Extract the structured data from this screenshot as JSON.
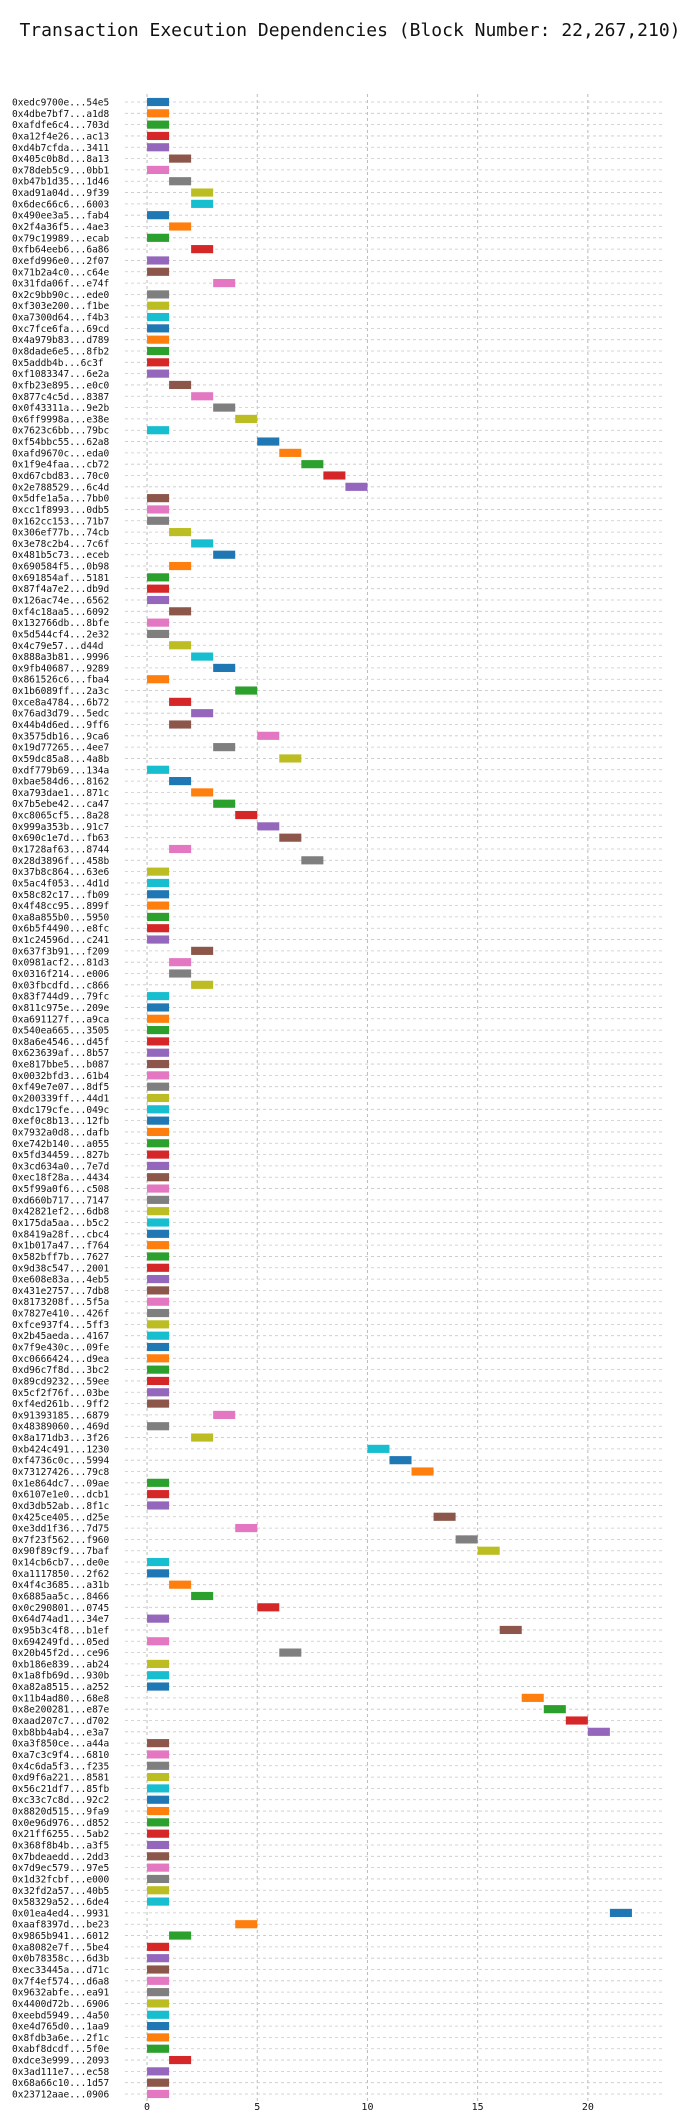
{
  "chart_data": {
    "type": "bar",
    "orientation": "horizontal",
    "title": "Transaction Execution Dependencies (Block Number: 22,267,210)",
    "xlabel": "",
    "ylabel": "",
    "xlim": [
      -1,
      23.5
    ],
    "xticks": [
      0,
      5,
      10,
      15,
      20
    ],
    "grid": true,
    "palette": {
      "blue": "#1f77b4",
      "orange": "#ff7f0e",
      "green": "#2ca02c",
      "red": "#d62728",
      "purple": "#9467bd",
      "brown": "#8c564b",
      "pink": "#e377c2",
      "gray": "#7f7f7f",
      "olive": "#bcbd22",
      "cyan": "#17becf"
    },
    "rows": [
      [
        "0xedc9700e...54e5",
        0,
        "blue"
      ],
      [
        "0x4dbe7bf7...a1d8",
        0,
        "orange"
      ],
      [
        "0xafdfe6c4...703d",
        0,
        "green"
      ],
      [
        "0xa12f4e26...ac13",
        0,
        "red"
      ],
      [
        "0xd4b7cfda...3411",
        0,
        "purple"
      ],
      [
        "0x405c0b8d...8a13",
        1,
        "brown"
      ],
      [
        "0x78deb5c9...0bb1",
        0,
        "pink"
      ],
      [
        "0xb47b1d35...1d46",
        1,
        "gray"
      ],
      [
        "0xad91a04d...9f39",
        2,
        "olive"
      ],
      [
        "0x6dec66c6...6003",
        2,
        "cyan"
      ],
      [
        "0x490ee3a5...fab4",
        0,
        "blue"
      ],
      [
        "0x2f4a36f5...4ae3",
        1,
        "orange"
      ],
      [
        "0x79c19989...ecab",
        0,
        "green"
      ],
      [
        "0xfb64eeb6...6a86",
        2,
        "red"
      ],
      [
        "0xefd996e0...2f07",
        0,
        "purple"
      ],
      [
        "0x71b2a4c0...c64e",
        0,
        "brown"
      ],
      [
        "0x31fda06f...e74f",
        3,
        "pink"
      ],
      [
        "0x2c9bb90c...ede0",
        0,
        "gray"
      ],
      [
        "0xf303e200...f1be",
        0,
        "olive"
      ],
      [
        "0xa7300d64...f4b3",
        0,
        "cyan"
      ],
      [
        "0xc7fce6fa...69cd",
        0,
        "blue"
      ],
      [
        "0x4a979b83...d789",
        0,
        "orange"
      ],
      [
        "0x8dade6e5...8fb2",
        0,
        "green"
      ],
      [
        "0x5addb4b...6c3f",
        0,
        "red"
      ],
      [
        "0xf1083347...6e2a",
        0,
        "purple"
      ],
      [
        "0xfb23e895...e0c0",
        1,
        "brown"
      ],
      [
        "0x877c4c5d...8387",
        2,
        "pink"
      ],
      [
        "0x0f43311a...9e2b",
        3,
        "gray"
      ],
      [
        "0x6ff9998a...e38e",
        4,
        "olive"
      ],
      [
        "0x7623c6bb...79bc",
        0,
        "cyan"
      ],
      [
        "0xf54bbc55...62a8",
        5,
        "blue"
      ],
      [
        "0xafd9670c...eda0",
        6,
        "orange"
      ],
      [
        "0x1f9e4faa...cb72",
        7,
        "green"
      ],
      [
        "0xd67cbd83...70c0",
        8,
        "red"
      ],
      [
        "0x2e788529...6c4d",
        9,
        "purple"
      ],
      [
        "0x5dfe1a5a...7bb0",
        0,
        "brown"
      ],
      [
        "0xcc1f8993...0db5",
        0,
        "pink"
      ],
      [
        "0x162cc153...71b7",
        0,
        "gray"
      ],
      [
        "0x306ef77b...74cb",
        1,
        "olive"
      ],
      [
        "0x3e78c2b4...7c6f",
        2,
        "cyan"
      ],
      [
        "0x481b5c73...eceb",
        3,
        "blue"
      ],
      [
        "0x690584f5...0b98",
        1,
        "orange"
      ],
      [
        "0x691854af...5181",
        0,
        "green"
      ],
      [
        "0x87f4a7e2...db9d",
        0,
        "red"
      ],
      [
        "0x126ac74e...6562",
        0,
        "purple"
      ],
      [
        "0xf4c18aa5...6092",
        1,
        "brown"
      ],
      [
        "0x132766db...8bfe",
        0,
        "pink"
      ],
      [
        "0x5d544cf4...2e32",
        0,
        "gray"
      ],
      [
        "0x4c79e57...d44d",
        1,
        "olive"
      ],
      [
        "0x888a3b81...9996",
        2,
        "cyan"
      ],
      [
        "0x9fb40687...9289",
        3,
        "blue"
      ],
      [
        "0x861526c6...fba4",
        0,
        "orange"
      ],
      [
        "0x1b6089ff...2a3c",
        4,
        "green"
      ],
      [
        "0xce8a4784...6b72",
        1,
        "red"
      ],
      [
        "0x76ad3d79...5edc",
        2,
        "purple"
      ],
      [
        "0x44b4d6ed...9ff6",
        1,
        "brown"
      ],
      [
        "0x3575db16...9ca6",
        5,
        "pink"
      ],
      [
        "0x19d77265...4ee7",
        3,
        "gray"
      ],
      [
        "0x59dc85a8...4a8b",
        6,
        "olive"
      ],
      [
        "0xdf779b69...134a",
        0,
        "cyan"
      ],
      [
        "0xbae584d6...8162",
        1,
        "blue"
      ],
      [
        "0xa793dae1...871c",
        2,
        "orange"
      ],
      [
        "0x7b5ebe42...ca47",
        3,
        "green"
      ],
      [
        "0xc8065cf5...8a28",
        4,
        "red"
      ],
      [
        "0x999a353b...91c7",
        5,
        "purple"
      ],
      [
        "0x690c1e7d...fb63",
        6,
        "brown"
      ],
      [
        "0x1728af63...8744",
        1,
        "pink"
      ],
      [
        "0x28d3896f...458b",
        7,
        "gray"
      ],
      [
        "0x37b8c864...63e6",
        0,
        "olive"
      ],
      [
        "0x5ac4f053...4d1d",
        0,
        "cyan"
      ],
      [
        "0x58c82c17...fb09",
        0,
        "blue"
      ],
      [
        "0x4f48cc95...899f",
        0,
        "orange"
      ],
      [
        "0xa8a855b0...5950",
        0,
        "green"
      ],
      [
        "0x6b5f4490...e8fc",
        0,
        "red"
      ],
      [
        "0x1c24596d...c241",
        0,
        "purple"
      ],
      [
        "0x637f3b91...f209",
        2,
        "brown"
      ],
      [
        "0x0981acf2...81d3",
        1,
        "pink"
      ],
      [
        "0x0316f214...e006",
        1,
        "gray"
      ],
      [
        "0x03fbcdfd...c866",
        2,
        "olive"
      ],
      [
        "0x83f744d9...79fc",
        0,
        "cyan"
      ],
      [
        "0x811c975e...209e",
        0,
        "blue"
      ],
      [
        "0xa691127f...a9ca",
        0,
        "orange"
      ],
      [
        "0x540ea665...3505",
        0,
        "green"
      ],
      [
        "0x8a6e4546...d45f",
        0,
        "red"
      ],
      [
        "0x623639af...8b57",
        0,
        "purple"
      ],
      [
        "0xe817bbe5...b087",
        0,
        "brown"
      ],
      [
        "0x0032bfd3...61b4",
        0,
        "pink"
      ],
      [
        "0xf49e7e07...8df5",
        0,
        "gray"
      ],
      [
        "0x200339ff...44d1",
        0,
        "olive"
      ],
      [
        "0xdc179cfe...049c",
        0,
        "cyan"
      ],
      [
        "0xef0c8b13...12fb",
        0,
        "blue"
      ],
      [
        "0x7932a0d8...dafb",
        0,
        "orange"
      ],
      [
        "0xe742b140...a055",
        0,
        "green"
      ],
      [
        "0x5fd34459...827b",
        0,
        "red"
      ],
      [
        "0x3cd634a0...7e7d",
        0,
        "purple"
      ],
      [
        "0xec18f28a...4434",
        0,
        "brown"
      ],
      [
        "0x5f99a0f6...c508",
        0,
        "pink"
      ],
      [
        "0xd660b717...7147",
        0,
        "gray"
      ],
      [
        "0x42821ef2...6db8",
        0,
        "olive"
      ],
      [
        "0x175da5aa...b5c2",
        0,
        "cyan"
      ],
      [
        "0x8419a28f...cbc4",
        0,
        "blue"
      ],
      [
        "0x1b017a47...f764",
        0,
        "orange"
      ],
      [
        "0x582bff7b...7627",
        0,
        "green"
      ],
      [
        "0x9d38c547...2001",
        0,
        "red"
      ],
      [
        "0xe608e83a...4eb5",
        0,
        "purple"
      ],
      [
        "0x431e2757...7db8",
        0,
        "brown"
      ],
      [
        "0x8173208f...5f5a",
        0,
        "pink"
      ],
      [
        "0x7827e410...426f",
        0,
        "gray"
      ],
      [
        "0xfce937f4...5ff3",
        0,
        "olive"
      ],
      [
        "0x2b45aeda...4167",
        0,
        "cyan"
      ],
      [
        "0x7f9e430c...09fe",
        0,
        "blue"
      ],
      [
        "0xc0666424...d9ea",
        0,
        "orange"
      ],
      [
        "0xd96c7f8d...3bc2",
        0,
        "green"
      ],
      [
        "0x89cd9232...59ee",
        0,
        "red"
      ],
      [
        "0x5cf2f76f...03be",
        0,
        "purple"
      ],
      [
        "0xf4ed261b...9ff2",
        0,
        "brown"
      ],
      [
        "0x91393185...6879",
        3,
        "pink"
      ],
      [
        "0x48389060...469d",
        0,
        "gray"
      ],
      [
        "0x8a171db3...3f26",
        2,
        "olive"
      ],
      [
        "0xb424c491...1230",
        10,
        "cyan"
      ],
      [
        "0xf4736c0c...5994",
        11,
        "blue"
      ],
      [
        "0x73127426...79c8",
        12,
        "orange"
      ],
      [
        "0x1e864dc7...09ae",
        0,
        "green"
      ],
      [
        "0x6107e1e0...dcb1",
        0,
        "red"
      ],
      [
        "0xd3db52ab...8f1c",
        0,
        "purple"
      ],
      [
        "0x425ce405...d25e",
        13,
        "brown"
      ],
      [
        "0xe3dd1f36...7d75",
        4,
        "pink"
      ],
      [
        "0x7f23f562...f960",
        14,
        "gray"
      ],
      [
        "0x90f89cf9...7baf",
        15,
        "olive"
      ],
      [
        "0x14cb6cb7...de0e",
        0,
        "cyan"
      ],
      [
        "0xa1117850...2f62",
        0,
        "blue"
      ],
      [
        "0x4f4c3685...a31b",
        1,
        "orange"
      ],
      [
        "0x6885aa5c...8466",
        2,
        "green"
      ],
      [
        "0x0c290801...0745",
        5,
        "red"
      ],
      [
        "0x64d74ad1...34e7",
        0,
        "purple"
      ],
      [
        "0x95b3c4f8...b1ef",
        16,
        "brown"
      ],
      [
        "0x694249fd...05ed",
        0,
        "pink"
      ],
      [
        "0x20b45f2d...ce96",
        6,
        "gray"
      ],
      [
        "0xb186e839...ab24",
        0,
        "olive"
      ],
      [
        "0x1a8fb69d...930b",
        0,
        "cyan"
      ],
      [
        "0xa82a8515...a252",
        0,
        "blue"
      ],
      [
        "0x11b4ad80...68e8",
        17,
        "orange"
      ],
      [
        "0x8e200281...e87e",
        18,
        "green"
      ],
      [
        "0xaad207c7...d702",
        19,
        "red"
      ],
      [
        "0xb8bb4ab4...e3a7",
        20,
        "purple"
      ],
      [
        "0xa3f850ce...a44a",
        0,
        "brown"
      ],
      [
        "0xa7c3c9f4...6810",
        0,
        "pink"
      ],
      [
        "0x4c6da5f3...f235",
        0,
        "gray"
      ],
      [
        "0xd9f6a221...8581",
        0,
        "olive"
      ],
      [
        "0x56c21df7...85fb",
        0,
        "cyan"
      ],
      [
        "0xc33c7c8d...92c2",
        0,
        "blue"
      ],
      [
        "0x8820d515...9fa9",
        0,
        "orange"
      ],
      [
        "0x0e96d976...d852",
        0,
        "green"
      ],
      [
        "0x21ff6255...5ab2",
        0,
        "red"
      ],
      [
        "0x368f8b4b...a3f5",
        0,
        "purple"
      ],
      [
        "0x7bdeaedd...2dd3",
        0,
        "brown"
      ],
      [
        "0x7d9ec579...97e5",
        0,
        "pink"
      ],
      [
        "0x1d32fcbf...e000",
        0,
        "gray"
      ],
      [
        "0x32fd2a57...40b5",
        0,
        "olive"
      ],
      [
        "0x58329a52...6de4",
        0,
        "cyan"
      ],
      [
        "0x01ea4ed4...9931",
        21,
        "blue"
      ],
      [
        "0xaaf8397d...be23",
        4,
        "orange"
      ],
      [
        "0x9865b941...6012",
        1,
        "green"
      ],
      [
        "0xa8082e7f...5be4",
        0,
        "red"
      ],
      [
        "0x0b78358c...6d3b",
        0,
        "purple"
      ],
      [
        "0xec33445a...d71c",
        0,
        "brown"
      ],
      [
        "0x7f4ef574...d6a8",
        0,
        "pink"
      ],
      [
        "0x9632abfe...ea91",
        0,
        "gray"
      ],
      [
        "0x4400d72b...6906",
        0,
        "olive"
      ],
      [
        "0xeebd5949...4a50",
        0,
        "cyan"
      ],
      [
        "0xe4d765d0...1aa9",
        0,
        "blue"
      ],
      [
        "0x8fdb3a6e...2f1c",
        0,
        "orange"
      ],
      [
        "0xabf8dcdf...5f0e",
        0,
        "green"
      ],
      [
        "0xdce3e999...2093",
        1,
        "red"
      ],
      [
        "0x3ad111e7...ec58",
        0,
        "purple"
      ],
      [
        "0x68a66c10...1d57",
        0,
        "brown"
      ],
      [
        "0x23712aae...0906",
        0,
        "pink"
      ]
    ]
  }
}
